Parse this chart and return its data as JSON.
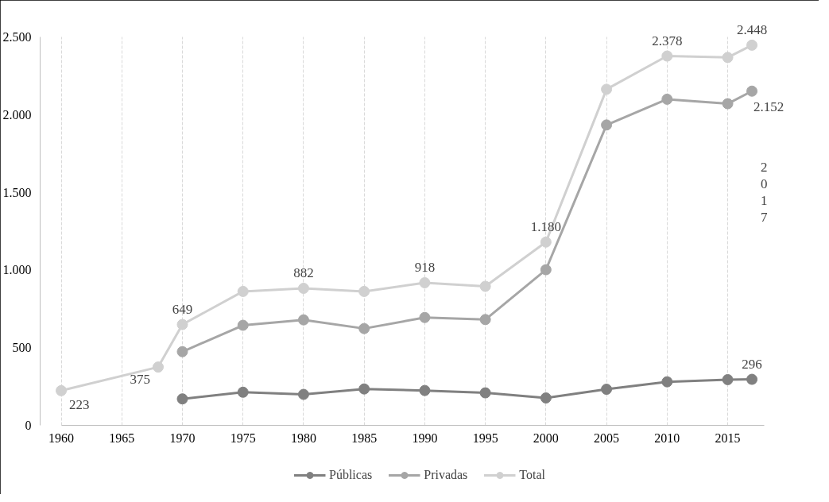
{
  "chart_data": {
    "type": "line",
    "xlim": [
      1960,
      2018
    ],
    "xticks": [
      1960,
      1965,
      1970,
      1975,
      1980,
      1985,
      1990,
      1995,
      2000,
      2005,
      2010,
      2015
    ],
    "ylim": [
      0,
      2500
    ],
    "yticks": [
      0,
      {
        "value": 500,
        "label": "500"
      },
      {
        "value": 1000,
        "label": "1.000"
      },
      {
        "value": 1500,
        "label": "1.500"
      },
      {
        "value": 2000,
        "label": "2.000"
      },
      {
        "value": 2500,
        "label": "2.500"
      }
    ],
    "grid": "x",
    "legend": "bottom",
    "marker": "circle",
    "line_style": "solid",
    "annotations": [
      "2017"
    ],
    "series": [
      {
        "name": "Públicas",
        "color": "#808080",
        "x": [
          1970,
          1975,
          1980,
          1985,
          1990,
          1995,
          2000,
          2005,
          2010,
          2015,
          2017
        ],
        "values": [
          170,
          213,
          199,
          234,
          224,
          209,
          176,
          232,
          280,
          294,
          296
        ],
        "value_labels": [
          null,
          null,
          null,
          null,
          null,
          null,
          null,
          null,
          null,
          null,
          "296"
        ]
      },
      {
        "name": "Privadas",
        "color": "#a6a6a6",
        "x": [
          1970,
          1975,
          1980,
          1985,
          1990,
          1995,
          2000,
          2005,
          2010,
          2015,
          2017
        ],
        "values": [
          474,
          644,
          679,
          623,
          694,
          681,
          1002,
          1934,
          2100,
          2071,
          2152
        ],
        "value_labels": [
          null,
          null,
          null,
          null,
          null,
          null,
          null,
          null,
          null,
          null,
          "2.152"
        ]
      },
      {
        "name": "Total",
        "color": "#d0d0d0",
        "x": [
          1960,
          1968,
          1970,
          1975,
          1980,
          1985,
          1990,
          1995,
          2000,
          2005,
          2010,
          2015,
          2017
        ],
        "values": [
          223,
          375,
          649,
          862,
          882,
          862,
          918,
          895,
          1180,
          2164,
          2378,
          2369,
          2448
        ],
        "value_labels": [
          "223",
          "375",
          "649",
          null,
          "882",
          null,
          "918",
          null,
          "1.180",
          null,
          "2.378",
          null,
          "2.448"
        ]
      }
    ]
  }
}
